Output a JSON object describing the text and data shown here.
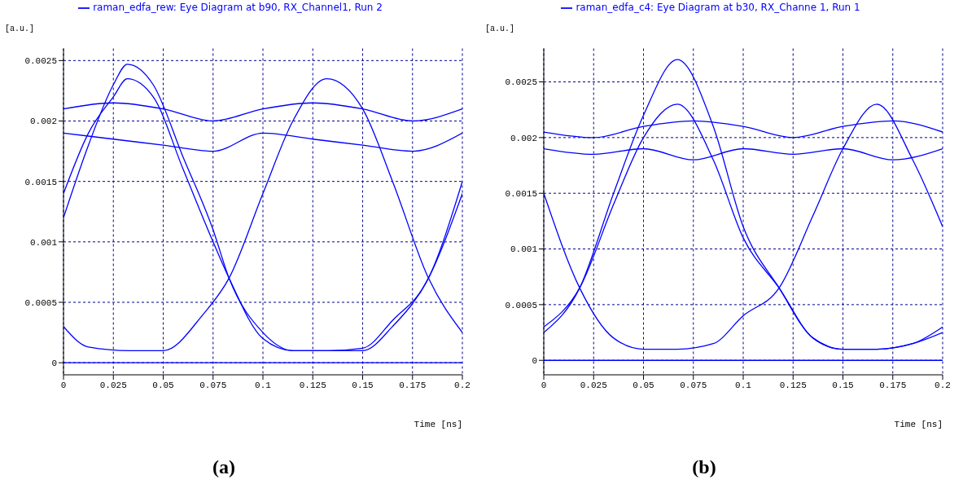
{
  "chart_data": [
    {
      "type": "line",
      "xlabel": "Time [ns]",
      "ylabel": "[a.u.]",
      "annotations": [
        "(a)"
      ],
      "xlim": [
        0,
        0.2
      ],
      "ylim": [
        -0.0001,
        0.0026
      ],
      "xticks": [
        0,
        0.025,
        0.05,
        0.075,
        0.1,
        0.125,
        0.15,
        0.175,
        0.2
      ],
      "yticks": [
        0,
        0.0005,
        0.001,
        0.0015,
        0.002,
        0.0025
      ],
      "grid": true,
      "legend": "top",
      "marker": "none",
      "line_style": "solid",
      "series": [
        {
          "name": "raman_edfa_rew: Eye Diagram at b90, RX_Channel1, Run 2",
          "color": "#0000ff",
          "x": [
            0,
            0.0125,
            0.025,
            0.032,
            0.045,
            0.06,
            0.075,
            0.083,
            0.1,
            0.115,
            0.133,
            0.15,
            0.165,
            0.183,
            0.2
          ],
          "values": [
            0.0014,
            0.0019,
            0.0022,
            0.00235,
            0.0022,
            0.0016,
            0.001,
            0.0007,
            0.0002,
            0.0001,
            0.0001,
            0.0001,
            0.0003,
            0.0007,
            0.0014
          ]
        },
        {
          "color": "#0000ff",
          "x": [
            0,
            0.0125,
            0.025,
            0.032,
            0.045,
            0.06,
            0.075,
            0.083,
            0.1,
            0.115,
            0.133,
            0.15,
            0.165,
            0.183,
            0.2
          ],
          "values": [
            0.0012,
            0.0018,
            0.0023,
            0.00247,
            0.0023,
            0.0017,
            0.0011,
            0.0007,
            0.00025,
            0.0001,
            0.0001,
            0.00012,
            0.00035,
            0.0007,
            0.0015
          ]
        },
        {
          "color": "#0000ff",
          "x": [
            0,
            0.0125,
            0.033,
            0.05,
            0.07,
            0.083,
            0.1,
            0.115,
            0.132,
            0.15,
            0.165,
            0.183,
            0.2
          ],
          "values": [
            0.0003,
            0.00013,
            0.0001,
            0.0001,
            0.0004,
            0.0007,
            0.0014,
            0.002,
            0.00235,
            0.0021,
            0.0015,
            0.0007,
            0.00025
          ]
        },
        {
          "color": "#0000ff",
          "x": [
            0,
            0.025,
            0.05,
            0.075,
            0.1,
            0.125,
            0.15,
            0.175,
            0.2
          ],
          "values": [
            0.0021,
            0.00215,
            0.0021,
            0.002,
            0.0021,
            0.00215,
            0.0021,
            0.002,
            0.0021
          ]
        },
        {
          "color": "#0000ff",
          "x": [
            0,
            0.025,
            0.05,
            0.075,
            0.1,
            0.125,
            0.15,
            0.175,
            0.2
          ],
          "values": [
            0.0019,
            0.00185,
            0.0018,
            0.00175,
            0.0019,
            0.00185,
            0.0018,
            0.00175,
            0.0019
          ]
        },
        {
          "color": "#0000ff",
          "x": [
            0,
            0.05,
            0.1,
            0.15,
            0.2
          ],
          "values": [
            0,
            0,
            0,
            0,
            0
          ]
        }
      ]
    },
    {
      "type": "line",
      "xlabel": "Time [ns]",
      "ylabel": "[a.u.]",
      "annotations": [
        "(b)"
      ],
      "xlim": [
        0,
        0.2
      ],
      "ylim": [
        -0.00013,
        0.0028
      ],
      "xticks": [
        0,
        0.025,
        0.05,
        0.075,
        0.1,
        0.125,
        0.15,
        0.175,
        0.2
      ],
      "yticks": [
        0,
        0.0005,
        0.001,
        0.0015,
        0.002,
        0.0025
      ],
      "grid": true,
      "legend": "top",
      "marker": "none",
      "line_style": "solid",
      "series": [
        {
          "name": "raman_edfa_c4: Eye Diagram at b30, RX_Channe 1, Run 1",
          "color": "#0000ff",
          "x": [
            0,
            0.018,
            0.035,
            0.05,
            0.067,
            0.085,
            0.1,
            0.118,
            0.135,
            0.15,
            0.167,
            0.185,
            0.2
          ],
          "values": [
            0.0015,
            0.00065,
            0.0002,
            0.0001,
            0.0001,
            0.00015,
            0.0004,
            0.00065,
            0.0013,
            0.0019,
            0.0023,
            0.0018,
            0.0012
          ]
        },
        {
          "color": "#0000ff",
          "x": [
            0,
            0.018,
            0.035,
            0.05,
            0.067,
            0.085,
            0.1,
            0.118,
            0.135,
            0.15,
            0.167,
            0.185,
            0.2
          ],
          "values": [
            0.0003,
            0.00065,
            0.0014,
            0.002,
            0.0023,
            0.0018,
            0.0011,
            0.00065,
            0.0002,
            0.0001,
            0.0001,
            0.00015,
            0.0003
          ]
        },
        {
          "color": "#0000ff",
          "x": [
            0,
            0.018,
            0.035,
            0.05,
            0.067,
            0.085,
            0.1,
            0.118,
            0.135,
            0.15,
            0.167,
            0.185,
            0.2
          ],
          "values": [
            0.00025,
            0.00065,
            0.0015,
            0.0022,
            0.0027,
            0.0021,
            0.0012,
            0.00065,
            0.0002,
            0.0001,
            0.0001,
            0.00015,
            0.00025
          ]
        },
        {
          "color": "#0000ff",
          "x": [
            0,
            0.025,
            0.05,
            0.075,
            0.1,
            0.125,
            0.15,
            0.175,
            0.2
          ],
          "values": [
            0.00205,
            0.002,
            0.0021,
            0.00215,
            0.0021,
            0.002,
            0.0021,
            0.00215,
            0.00205
          ]
        },
        {
          "color": "#0000ff",
          "x": [
            0,
            0.025,
            0.05,
            0.075,
            0.1,
            0.125,
            0.15,
            0.175,
            0.2
          ],
          "values": [
            0.0019,
            0.00185,
            0.0019,
            0.0018,
            0.0019,
            0.00185,
            0.0019,
            0.0018,
            0.0019
          ]
        },
        {
          "color": "#0000ff",
          "x": [
            0,
            0.05,
            0.1,
            0.15,
            0.2
          ],
          "values": [
            0,
            0,
            0,
            0,
            0
          ]
        }
      ]
    }
  ]
}
